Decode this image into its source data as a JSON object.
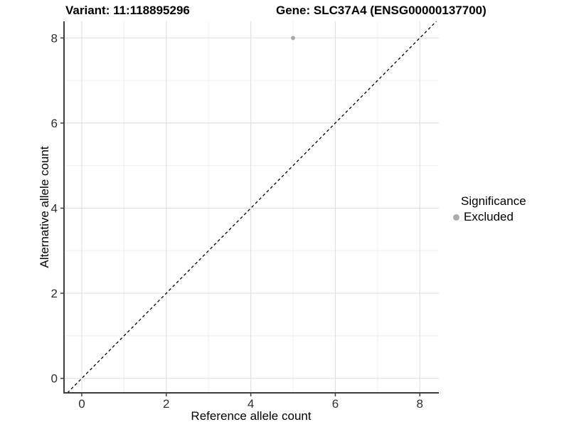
{
  "header": {
    "variant_title": "Variant: 11:118895296",
    "gene_title": "Gene: SLC37A4 (ENSG00000137700)"
  },
  "chart_data": {
    "type": "scatter",
    "titles": {
      "variant": "Variant: 11:118895296",
      "gene": "Gene: SLC37A4 (ENSG00000137700)"
    },
    "xlabel": "Reference allele count",
    "ylabel": "Alternative allele count",
    "xlim": [
      -0.42,
      8.45
    ],
    "ylim": [
      -0.34,
      8.39
    ],
    "xticks": [
      0,
      2,
      4,
      6,
      8
    ],
    "yticks": [
      0,
      2,
      4,
      6,
      8
    ],
    "xminor": [
      1,
      3,
      5,
      7
    ],
    "yminor": [
      1,
      3,
      5,
      7
    ],
    "grid": "major and minor gridlines, white panel",
    "reference_line": {
      "kind": "identity y=x",
      "style": "dashed",
      "color": "#000000"
    },
    "series": [
      {
        "name": "Excluded",
        "color": "#ababab",
        "points": [
          {
            "x": 5,
            "y": 8
          }
        ]
      }
    ],
    "legend": {
      "title": "Significance",
      "position": "right",
      "items": [
        {
          "label": "Excluded",
          "color": "#ababab",
          "marker": "circle"
        }
      ]
    },
    "colors": {
      "axis_line": "#3f3f3f",
      "tick_mark": "#3f3f3f",
      "grid_major": "#e2e2e2",
      "grid_minor": "#efefef",
      "tick_label": "#2e2e2e",
      "point": "#ababab"
    }
  }
}
